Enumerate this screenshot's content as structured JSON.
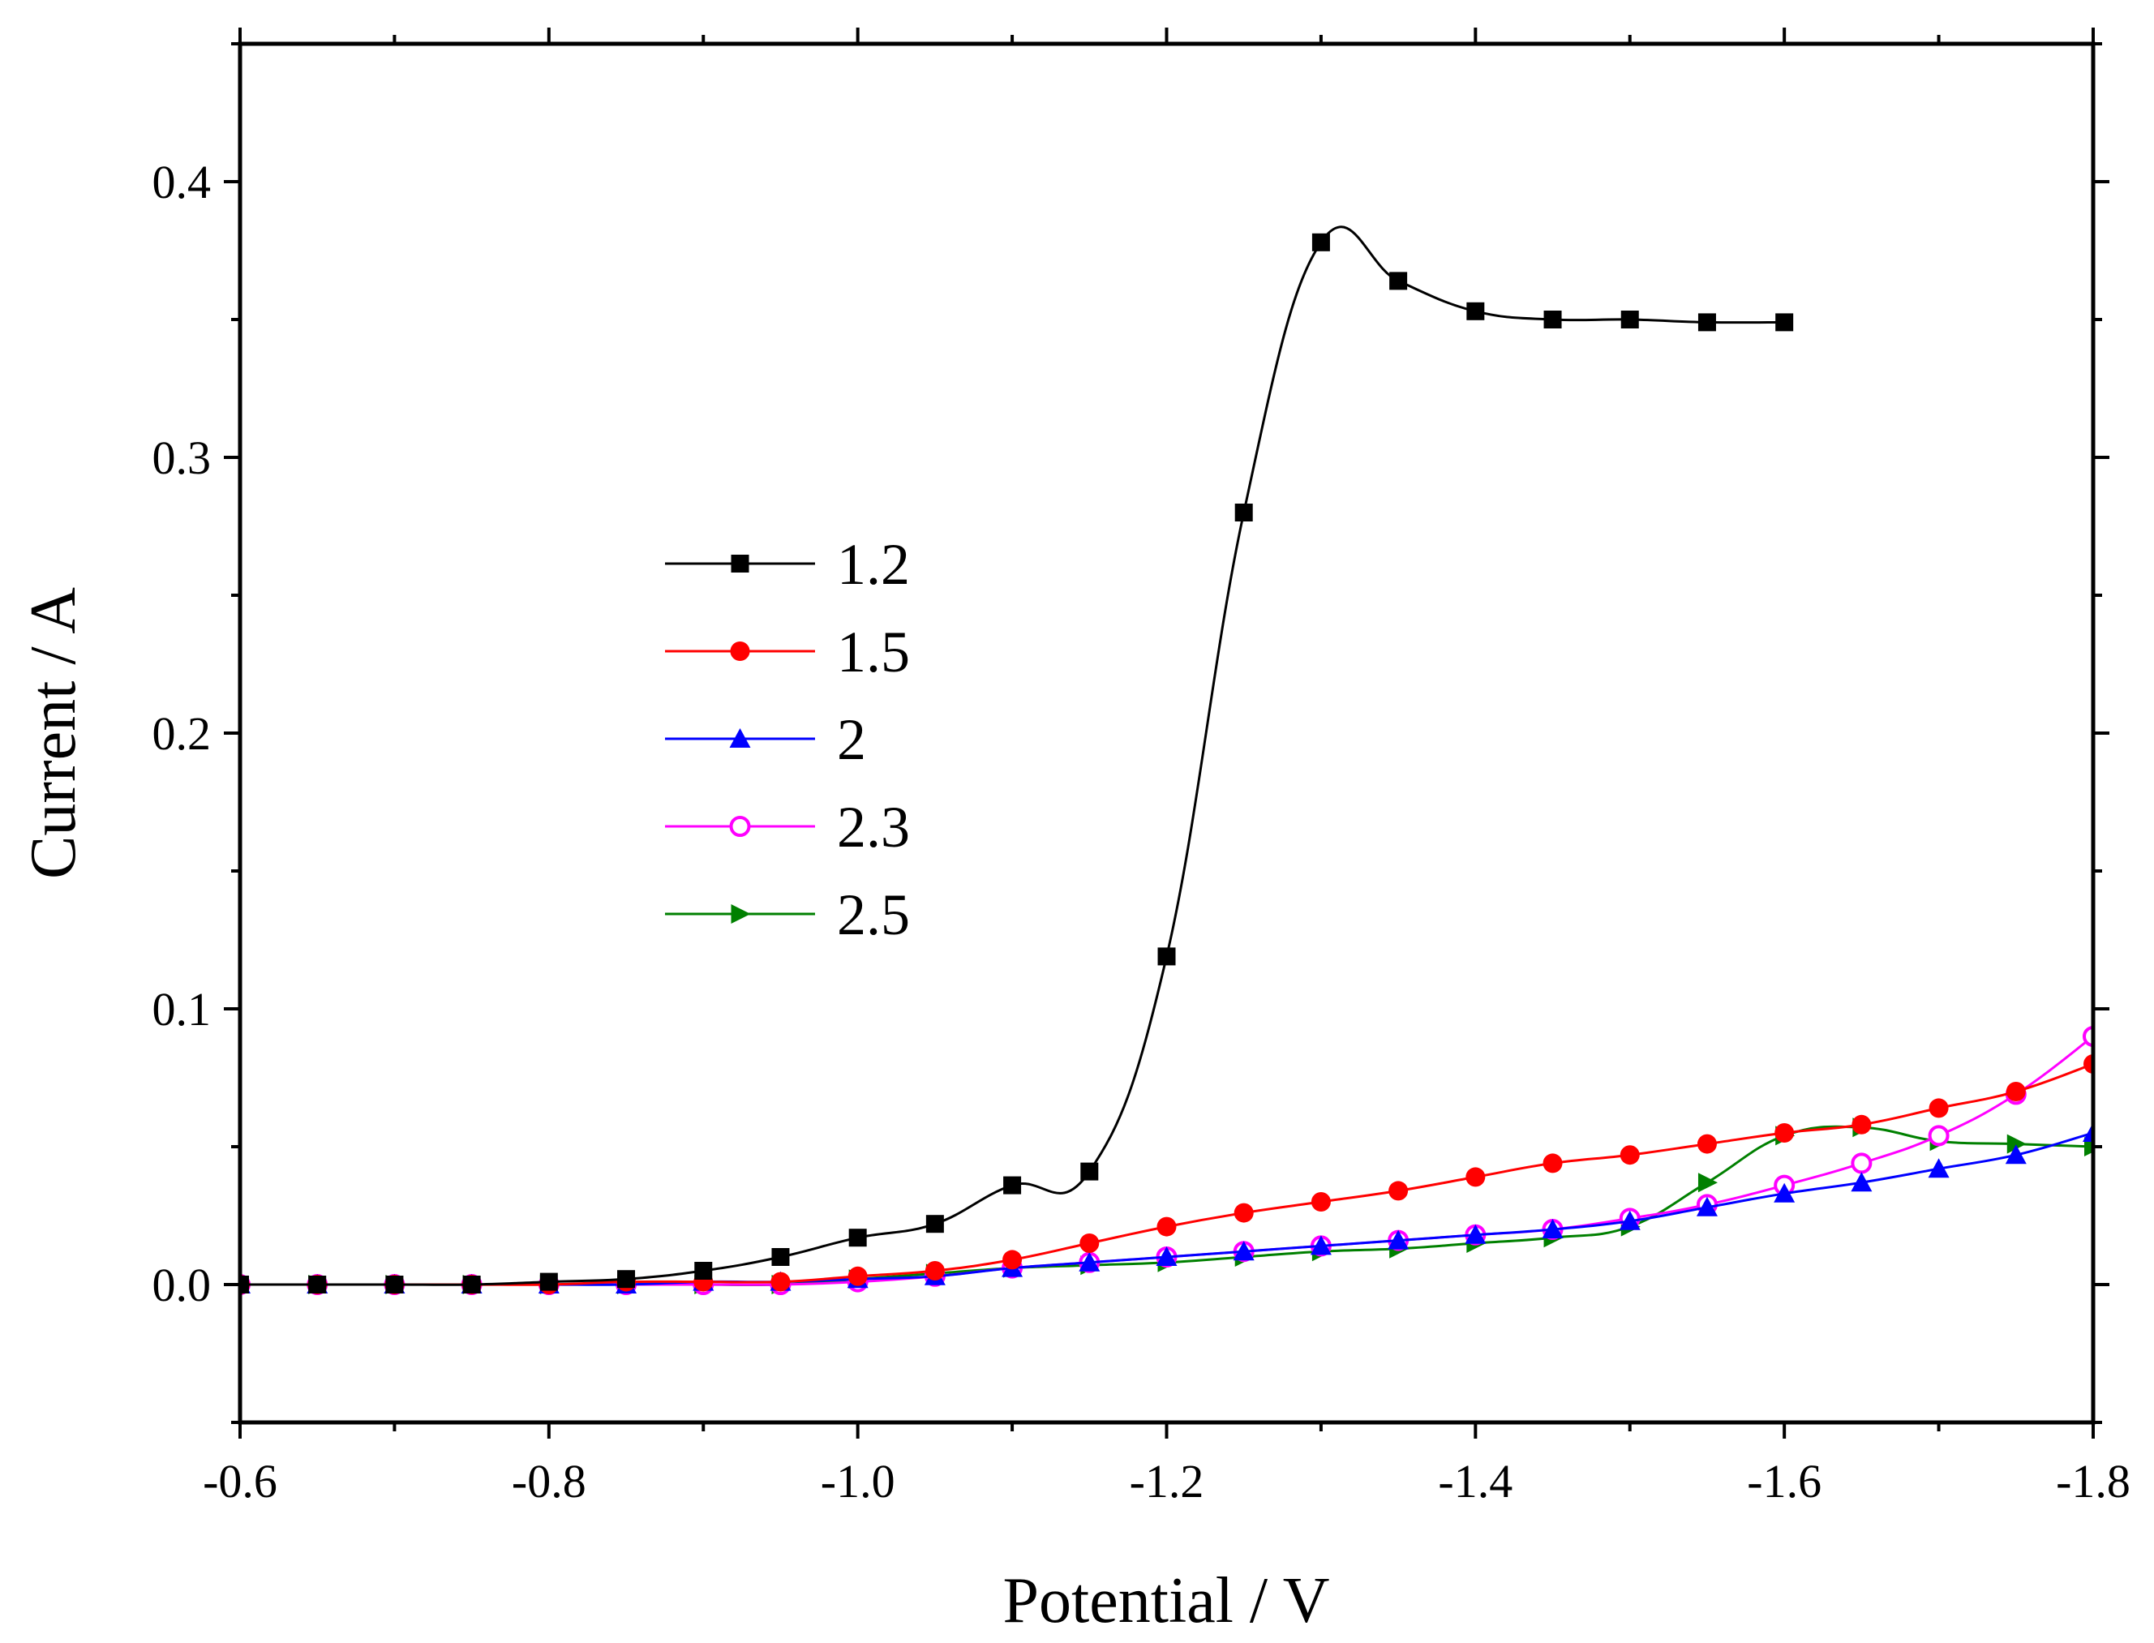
{
  "chart_data": {
    "type": "line",
    "title": "",
    "xlabel": "Potential / V",
    "ylabel": "Current / A",
    "xlim": [
      -0.6,
      -1.8
    ],
    "ylim": [
      -0.05,
      0.45
    ],
    "xticks": [
      -0.6,
      -0.8,
      -1.0,
      -1.2,
      -1.4,
      -1.6,
      -1.8
    ],
    "xtick_labels": [
      "-0.6",
      "-0.8",
      "-1.0",
      "-1.2",
      "-1.4",
      "-1.6",
      "-1.8"
    ],
    "yticks": [
      0.0,
      0.1,
      0.2,
      0.3,
      0.4
    ],
    "ytick_labels": [
      "0.0",
      "0.1",
      "0.2",
      "0.3",
      "0.4"
    ],
    "grid": false,
    "legend_position": "center-left",
    "series": [
      {
        "name": "1.2",
        "color": "#000000",
        "marker": "square",
        "x": [
          -0.6,
          -0.65,
          -0.7,
          -0.75,
          -0.8,
          -0.85,
          -0.9,
          -0.95,
          -1.0,
          -1.05,
          -1.1,
          -1.15,
          -1.2,
          -1.25,
          -1.3,
          -1.35,
          -1.4,
          -1.45,
          -1.5,
          -1.55,
          -1.6
        ],
        "y": [
          0.0,
          0.0,
          0.0,
          0.0,
          0.001,
          0.002,
          0.005,
          0.01,
          0.017,
          0.022,
          0.036,
          0.041,
          0.119,
          0.28,
          0.378,
          0.364,
          0.353,
          0.35,
          0.35,
          0.349,
          0.349
        ]
      },
      {
        "name": "1.5",
        "color": "#ff0000",
        "marker": "circle",
        "x": [
          -0.6,
          -0.65,
          -0.7,
          -0.75,
          -0.8,
          -0.85,
          -0.9,
          -0.95,
          -1.0,
          -1.05,
          -1.1,
          -1.15,
          -1.2,
          -1.25,
          -1.3,
          -1.35,
          -1.4,
          -1.45,
          -1.5,
          -1.55,
          -1.6,
          -1.65,
          -1.7,
          -1.75,
          -1.8
        ],
        "y": [
          0.0,
          0.0,
          0.0,
          0.0,
          0.0,
          0.001,
          0.001,
          0.001,
          0.003,
          0.005,
          0.009,
          0.015,
          0.021,
          0.026,
          0.03,
          0.034,
          0.039,
          0.044,
          0.047,
          0.051,
          0.055,
          0.058,
          0.064,
          0.07,
          0.08
        ]
      },
      {
        "name": "2",
        "color": "#0000ff",
        "marker": "triangle-up",
        "x": [
          -0.6,
          -0.65,
          -0.7,
          -0.75,
          -0.8,
          -0.85,
          -0.9,
          -0.95,
          -1.0,
          -1.05,
          -1.1,
          -1.15,
          -1.2,
          -1.25,
          -1.3,
          -1.35,
          -1.4,
          -1.45,
          -1.5,
          -1.55,
          -1.6,
          -1.65,
          -1.7,
          -1.75,
          -1.8
        ],
        "y": [
          0.0,
          0.0,
          0.0,
          0.0,
          0.0,
          0.0,
          0.001,
          0.001,
          0.002,
          0.003,
          0.006,
          0.008,
          0.01,
          0.012,
          0.014,
          0.016,
          0.018,
          0.02,
          0.023,
          0.028,
          0.033,
          0.037,
          0.042,
          0.047,
          0.055
        ]
      },
      {
        "name": "2.3",
        "color": "#ff00ff",
        "marker": "circle-open",
        "x": [
          -0.6,
          -0.65,
          -0.7,
          -0.75,
          -0.8,
          -0.85,
          -0.9,
          -0.95,
          -1.0,
          -1.05,
          -1.1,
          -1.15,
          -1.2,
          -1.25,
          -1.3,
          -1.35,
          -1.4,
          -1.45,
          -1.5,
          -1.55,
          -1.6,
          -1.65,
          -1.7,
          -1.75,
          -1.8
        ],
        "y": [
          0.0,
          0.0,
          0.0,
          0.0,
          0.0,
          0.0,
          0.0,
          0.0,
          0.001,
          0.003,
          0.006,
          0.008,
          0.01,
          0.012,
          0.014,
          0.016,
          0.018,
          0.02,
          0.024,
          0.029,
          0.036,
          0.044,
          0.054,
          0.069,
          0.09
        ]
      },
      {
        "name": "2.5",
        "color": "#008000",
        "marker": "triangle-right",
        "x": [
          -0.6,
          -0.65,
          -0.7,
          -0.75,
          -0.8,
          -0.85,
          -0.9,
          -0.95,
          -1.0,
          -1.05,
          -1.1,
          -1.15,
          -1.2,
          -1.25,
          -1.3,
          -1.35,
          -1.4,
          -1.45,
          -1.5,
          -1.55,
          -1.6,
          -1.65,
          -1.7,
          -1.75,
          -1.8
        ],
        "y": [
          0.0,
          0.0,
          0.0,
          0.0,
          0.0,
          0.0,
          0.0,
          0.0,
          0.002,
          0.004,
          0.006,
          0.007,
          0.008,
          0.01,
          0.012,
          0.013,
          0.015,
          0.017,
          0.021,
          0.037,
          0.054,
          0.057,
          0.052,
          0.051,
          0.05
        ]
      }
    ]
  }
}
